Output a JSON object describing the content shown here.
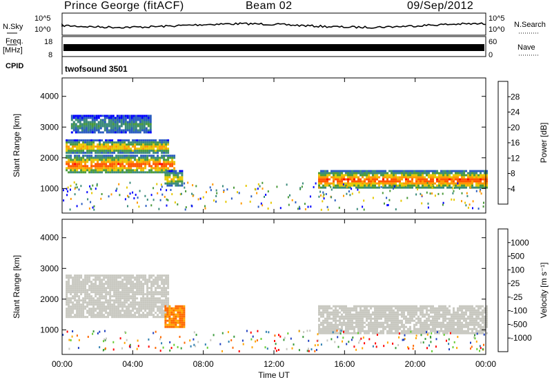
{
  "header": {
    "station": "Prince George (fitACF)",
    "beam": "Beam 02",
    "date": "09/Sep/2012"
  },
  "strip_labels": {
    "nsky": "N.Sky",
    "freq": "Freq.",
    "freq_unit": "[MHz]",
    "cpid": "CPID",
    "nsearch": "N.Search",
    "nave": "Nave",
    "cpid_value": "twofsound 3501"
  },
  "strip_ticks": {
    "nsky_top": "10^5",
    "nsky_bottom": "10^0",
    "freq_top": "18",
    "freq_bottom": "8",
    "nave_top": "60",
    "nave_bottom": "0"
  },
  "colors": {
    "power_scale": [
      "#0000ff",
      "#2a5cc0",
      "#3a8a7a",
      "#4a9a3a",
      "#e6c800",
      "#ff9900",
      "#ff5500",
      "#ff0000"
    ],
    "velocity_scale": [
      "#2040c0",
      "#2f7fb0",
      "#3a9a3a",
      "#66cc33",
      "#c8c8c0",
      "#ffa500",
      "#ff6a00",
      "#ff0000"
    ],
    "ground_scatter": "#c8c8c0"
  },
  "chart_data": [
    {
      "type": "heatmap",
      "panel": "power",
      "xlabel": "Time UT",
      "ylabel": "Slant Range [km]",
      "xlim": [
        "00:00",
        "24:00"
      ],
      "ylim": [
        200,
        4600
      ],
      "x_ticks": [
        "00:00",
        "04:00",
        "08:00",
        "12:00",
        "16:00",
        "20:00",
        "00:00"
      ],
      "y_ticks": [
        "1000",
        "2000",
        "3000",
        "4000"
      ],
      "colorbar": {
        "label": "Power [dB]",
        "ticks": [
          "4",
          "8",
          "12",
          "16",
          "20",
          "24",
          "28"
        ],
        "range": [
          0,
          32
        ]
      },
      "bands": [
        {
          "start_hr": 0.2,
          "end_hr": 6.4,
          "range_start_km": 1500,
          "range_end_km": 2100,
          "peak_db": 28
        },
        {
          "start_hr": 0.2,
          "end_hr": 6.0,
          "range_start_km": 2150,
          "range_end_km": 2600,
          "peak_db": 22
        },
        {
          "start_hr": 0.5,
          "end_hr": 5.0,
          "range_start_km": 2800,
          "range_end_km": 3400,
          "peak_db": 12
        },
        {
          "start_hr": 5.8,
          "end_hr": 6.8,
          "range_start_km": 1100,
          "range_end_km": 1600,
          "peak_db": 20
        },
        {
          "start_hr": 14.5,
          "end_hr": 24.0,
          "range_start_km": 1000,
          "range_end_km": 1600,
          "peak_db": 28
        }
      ]
    },
    {
      "type": "heatmap",
      "panel": "velocity",
      "xlabel": "Time UT",
      "ylabel": "Slant Range [km]",
      "xlim": [
        "00:00",
        "24:00"
      ],
      "ylim": [
        200,
        4600
      ],
      "x_ticks": [
        "00:00",
        "04:00",
        "08:00",
        "12:00",
        "16:00",
        "20:00",
        "00:00"
      ],
      "y_ticks": [
        "1000",
        "2000",
        "3000",
        "4000"
      ],
      "colorbar": {
        "label": "Velocity [m s⁻¹]",
        "ticks": [
          "1000",
          "500",
          "100",
          "25",
          "-25",
          "-100",
          "-500",
          "-1000"
        ]
      },
      "regions": [
        {
          "start_hr": 0.2,
          "end_hr": 6.0,
          "range_start_km": 1400,
          "range_end_km": 2800,
          "class": "ground-scatter"
        },
        {
          "start_hr": 5.8,
          "end_hr": 6.9,
          "range_start_km": 1100,
          "range_end_km": 1800,
          "velocity_ms": -300
        },
        {
          "start_hr": 14.5,
          "end_hr": 24.0,
          "range_start_km": 900,
          "range_end_km": 1800,
          "class": "ground-scatter"
        }
      ]
    }
  ]
}
